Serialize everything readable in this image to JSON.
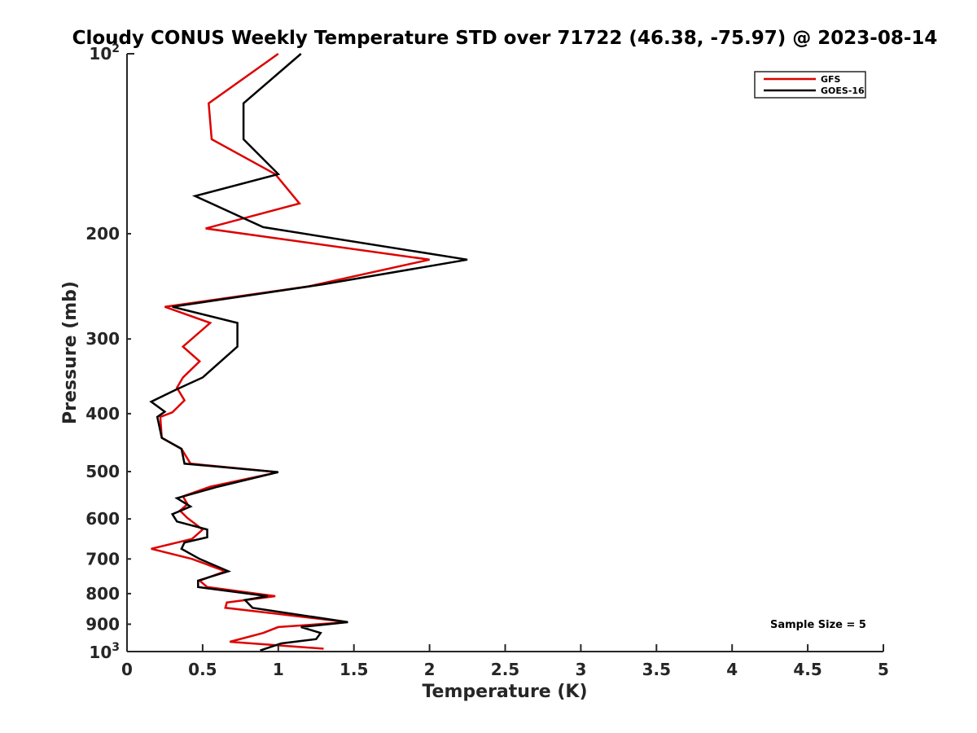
{
  "chart_data": {
    "type": "line",
    "title": "Cloudy CONUS Weekly Temperature STD over 71722 (46.38, -75.97) @ 2023-08-14",
    "xlabel": "Temperature (K)",
    "ylabel": "Pressure (mb)",
    "xlim": [
      0,
      5
    ],
    "ylim": [
      1000,
      100
    ],
    "yscale": "log",
    "xticks": [
      0,
      0.5,
      1,
      1.5,
      2,
      2.5,
      3,
      3.5,
      4,
      4.5,
      5
    ],
    "xtick_labels": [
      "0",
      "0.5",
      "1",
      "1.5",
      "2",
      "2.5",
      "3",
      "3.5",
      "4",
      "4.5",
      "5"
    ],
    "yticks": [
      200,
      300,
      400,
      500,
      600,
      700,
      800,
      900
    ],
    "ytick_labels": [
      "200",
      "300",
      "400",
      "500",
      "600",
      "700",
      "800",
      "900"
    ],
    "ytick_top": {
      "base": "10",
      "exp": "2"
    },
    "ytick_bottom": {
      "base": "10",
      "exp": "3"
    },
    "legend_position": "top-right",
    "annotation": "Sample Size = 5",
    "series": [
      {
        "name": "GFS",
        "color": "#dd0000",
        "points": [
          [
            1.0,
            100
          ],
          [
            0.54,
            121
          ],
          [
            0.56,
            139
          ],
          [
            0.98,
            159
          ],
          [
            1.14,
            178
          ],
          [
            0.52,
            196
          ],
          [
            2.0,
            221
          ],
          [
            1.2,
            245
          ],
          [
            0.25,
            265
          ],
          [
            0.55,
            282
          ],
          [
            0.37,
            309
          ],
          [
            0.48,
            327
          ],
          [
            0.37,
            348
          ],
          [
            0.33,
            362
          ],
          [
            0.38,
            380
          ],
          [
            0.3,
            398
          ],
          [
            0.22,
            405
          ],
          [
            0.23,
            439
          ],
          [
            0.36,
            458
          ],
          [
            0.42,
            485
          ],
          [
            1.0,
            501
          ],
          [
            0.55,
            530
          ],
          [
            0.37,
            550
          ],
          [
            0.4,
            567
          ],
          [
            0.35,
            581
          ],
          [
            0.4,
            598
          ],
          [
            0.5,
            625
          ],
          [
            0.43,
            648
          ],
          [
            0.16,
            673
          ],
          [
            0.43,
            700
          ],
          [
            0.65,
            734
          ],
          [
            0.48,
            761
          ],
          [
            0.53,
            780
          ],
          [
            0.98,
            808
          ],
          [
            0.66,
            828
          ],
          [
            0.65,
            845
          ],
          [
            0.98,
            864
          ],
          [
            1.46,
            893
          ],
          [
            1.0,
            910
          ],
          [
            0.9,
            931
          ],
          [
            0.68,
            963
          ],
          [
            1.3,
            989
          ]
        ]
      },
      {
        "name": "GOES-16",
        "color": "#000000",
        "points": [
          [
            1.15,
            100
          ],
          [
            0.77,
            121
          ],
          [
            0.77,
            139
          ],
          [
            1.0,
            159
          ],
          [
            0.45,
            173
          ],
          [
            0.9,
            195
          ],
          [
            2.25,
            221
          ],
          [
            1.3,
            243
          ],
          [
            0.3,
            265
          ],
          [
            0.73,
            282
          ],
          [
            0.73,
            309
          ],
          [
            0.5,
            348
          ],
          [
            0.32,
            365
          ],
          [
            0.16,
            382
          ],
          [
            0.25,
            397
          ],
          [
            0.2,
            405
          ],
          [
            0.23,
            439
          ],
          [
            0.36,
            458
          ],
          [
            0.38,
            485
          ],
          [
            1.0,
            501
          ],
          [
            0.6,
            530
          ],
          [
            0.33,
            554
          ],
          [
            0.42,
            572
          ],
          [
            0.3,
            589
          ],
          [
            0.33,
            606
          ],
          [
            0.53,
            625
          ],
          [
            0.53,
            644
          ],
          [
            0.38,
            657
          ],
          [
            0.36,
            673
          ],
          [
            0.48,
            700
          ],
          [
            0.67,
            734
          ],
          [
            0.47,
            761
          ],
          [
            0.47,
            780
          ],
          [
            0.93,
            808
          ],
          [
            0.78,
            820
          ],
          [
            0.83,
            845
          ],
          [
            1.46,
            893
          ],
          [
            1.15,
            910
          ],
          [
            1.28,
            931
          ],
          [
            1.25,
            953
          ],
          [
            1.02,
            969
          ],
          [
            0.88,
            996
          ]
        ]
      }
    ]
  }
}
